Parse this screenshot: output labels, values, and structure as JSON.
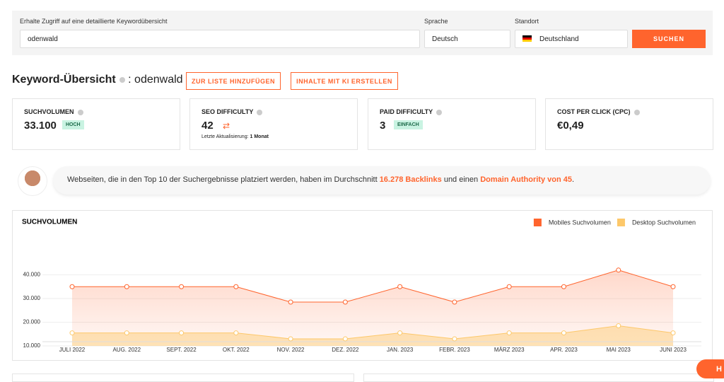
{
  "search": {
    "label": "Erhalte Zugriff auf eine detaillierte Keywordübersicht",
    "value": "odenwald",
    "language_label": "Sprache",
    "language": "Deutsch",
    "location_label": "Standort",
    "location": "Deutschland",
    "button": "SUCHEN"
  },
  "overview": {
    "title": "Keyword-Übersicht",
    "keyword": ": odenwald",
    "add_button": "ZUR LISTE HINZUFÜGEN",
    "ai_button": "INHALTE MIT KI ERSTELLEN"
  },
  "cards": [
    {
      "label": "SUCHVOLUMEN",
      "value": "33.100",
      "badge": "HOCH"
    },
    {
      "label": "SEO DIFFICULTY",
      "value": "42",
      "note": "Letzte Aktualisierung:",
      "note_strong": "1 Monat"
    },
    {
      "label": "PAID DIFFICULTY",
      "value": "3",
      "badge": "EINFACH"
    },
    {
      "label": "COST PER CLICK (CPC)",
      "value": "€0,49"
    }
  ],
  "info": {
    "text1": "Webseiten, die in den Top 10 der Suchergebnisse platziert werden, haben im Durchschnitt ",
    "highlight1": "16.278 Backlinks",
    "text2": " und einen ",
    "highlight2": "Domain Authority von 45",
    "text3": "."
  },
  "chat_label": "H",
  "chart_data": {
    "type": "line",
    "title": "SUCHVOLUMEN",
    "categories": [
      "JULI 2022",
      "AUG. 2022",
      "SEPT. 2022",
      "OKT. 2022",
      "NOV. 2022",
      "DEZ. 2022",
      "JAN. 2023",
      "FEBR. 2023",
      "MÄRZ 2023",
      "APR. 2023",
      "MAI 2023",
      "JUNI 2023"
    ],
    "series": [
      {
        "name": "Mobiles Suchvolumen",
        "color": "#ff642d",
        "values": [
          35000,
          35000,
          35000,
          35000,
          28500,
          28500,
          35000,
          28500,
          35000,
          35000,
          42000,
          35000
        ]
      },
      {
        "name": "Desktop Suchvolumen",
        "color": "#fdc86a",
        "values": [
          15500,
          15500,
          15500,
          15500,
          13000,
          13000,
          15500,
          13000,
          15500,
          15500,
          18500,
          15500
        ]
      }
    ],
    "ylim": [
      10000,
      50000
    ],
    "yticks": [
      {
        "value": 10000,
        "label": "10.000"
      },
      {
        "value": 20000,
        "label": "20.000"
      },
      {
        "value": 30000,
        "label": "30.000"
      },
      {
        "value": 40000,
        "label": "40.000"
      }
    ],
    "grid": true,
    "legend": "top-right"
  }
}
